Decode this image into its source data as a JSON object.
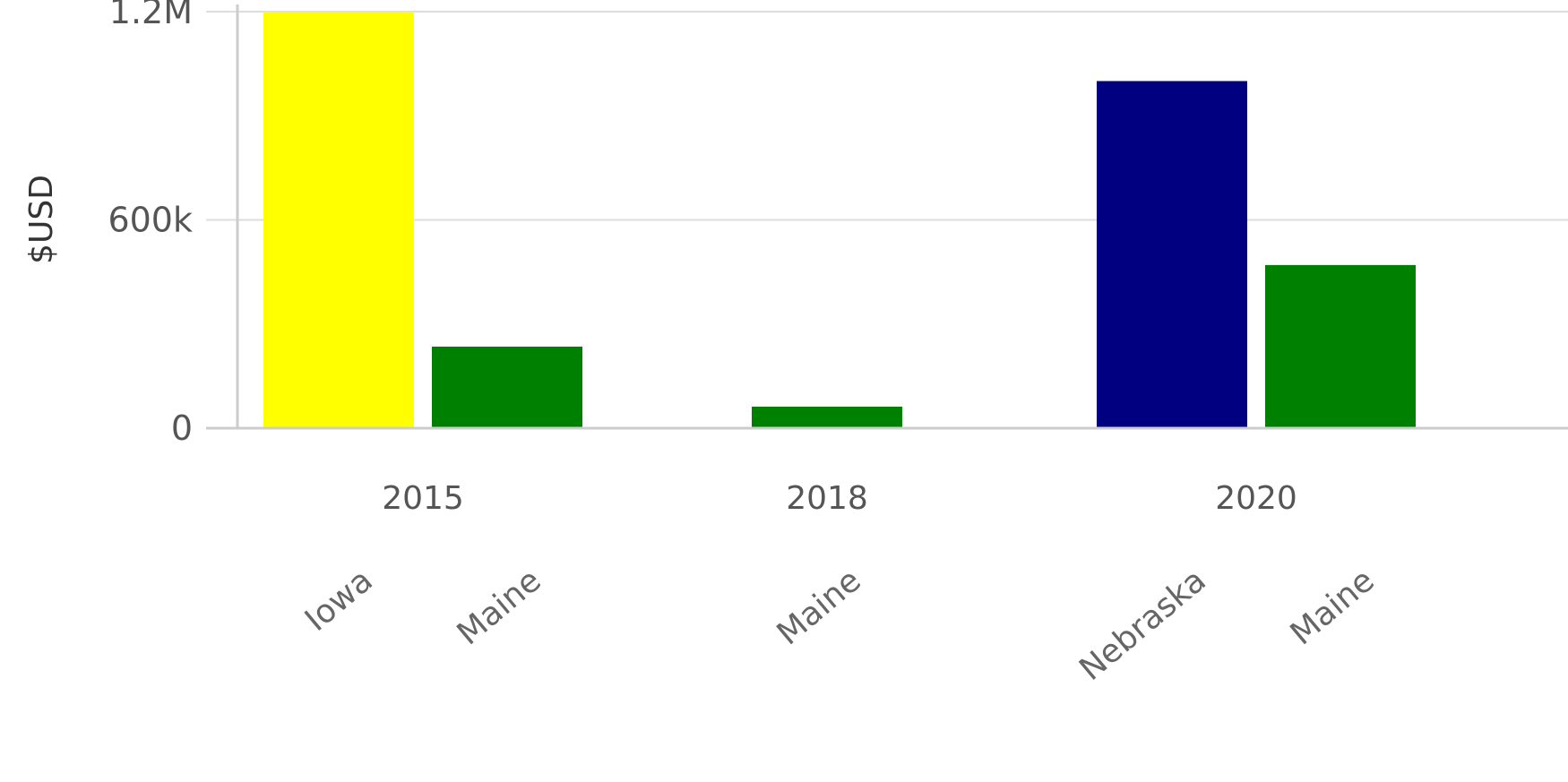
{
  "chart_data": {
    "type": "bar",
    "ylabel": "$USD",
    "ylim": [
      0,
      1200000
    ],
    "yticks": [
      {
        "value": 0,
        "label": "0"
      },
      {
        "value": 600000,
        "label": "600k"
      },
      {
        "value": 1200000,
        "label": "1.2M"
      }
    ],
    "groups": [
      {
        "category": "2015",
        "bars": [
          {
            "label": "Iowa",
            "value": 1200000,
            "color": "#ffff00"
          },
          {
            "label": "Maine",
            "value": 235000,
            "color": "#008000"
          }
        ]
      },
      {
        "category": "2018",
        "bars": [
          {
            "label": "Maine",
            "value": 62000,
            "color": "#008000"
          }
        ]
      },
      {
        "category": "2020",
        "bars": [
          {
            "label": "Nebraska",
            "value": 1000000,
            "color": "#000080"
          },
          {
            "label": "Maine",
            "value": 470000,
            "color": "#008000"
          }
        ]
      }
    ],
    "grid": true,
    "gridline_color": "#dddddd",
    "axis_color": "#cccccc"
  }
}
